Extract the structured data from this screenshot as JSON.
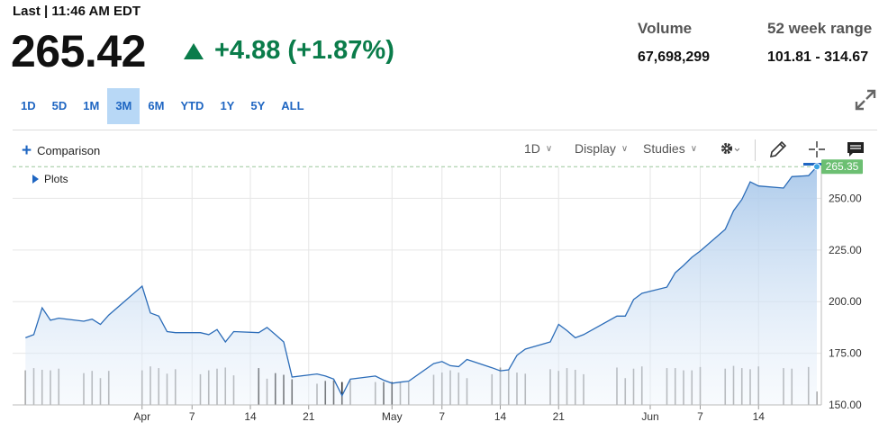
{
  "quote": {
    "last_label": "Last | 11:46 AM EDT",
    "price": "265.42",
    "change": "+4.88",
    "change_pct": "(+1.87%)",
    "up_color": "#0a7c4a"
  },
  "stats": {
    "volume_label": "Volume",
    "volume_value": "67,698,299",
    "range_label": "52 week range",
    "range_value": "101.81 - 314.67"
  },
  "ranges": {
    "items": [
      "1D",
      "5D",
      "1M",
      "3M",
      "6M",
      "YTD",
      "1Y",
      "5Y",
      "ALL"
    ],
    "active": "3M"
  },
  "toolbar": {
    "comparison_label": "Comparison",
    "interval_label": "1D",
    "display_label": "Display",
    "studies_label": "Studies",
    "plots_label": "Plots",
    "icons": [
      "gear-icon",
      "pencil-icon",
      "crosshair-icon",
      "comment-icon",
      "expand-icon"
    ]
  },
  "chart_data": {
    "type": "area",
    "title": "",
    "xlabel": "",
    "ylabel": "",
    "ylim": [
      150,
      265
    ],
    "y_ticks": [
      150,
      175,
      200,
      225,
      250
    ],
    "y_tick_labels": [
      "150.00",
      "175.00",
      "200.00",
      "225.00",
      "250.00"
    ],
    "last_price_label": "265.35",
    "last_price": 265.35,
    "x_labels": [
      {
        "label": "Apr",
        "date": "2024-04-01"
      },
      {
        "label": "7",
        "date": "2024-04-07"
      },
      {
        "label": "14",
        "date": "2024-04-14"
      },
      {
        "label": "21",
        "date": "2024-04-21"
      },
      {
        "label": "May",
        "date": "2024-05-01"
      },
      {
        "label": "7",
        "date": "2024-05-07"
      },
      {
        "label": "14",
        "date": "2024-05-14"
      },
      {
        "label": "21",
        "date": "2024-05-21"
      },
      {
        "label": "Jun",
        "date": "2024-06-01"
      },
      {
        "label": "7",
        "date": "2024-06-07"
      },
      {
        "label": "14",
        "date": "2024-06-14"
      }
    ],
    "series": [
      {
        "x": [
          "2024-03-18",
          "2024-03-19",
          "2024-03-20",
          "2024-03-21",
          "2024-03-22",
          "2024-03-25",
          "2024-03-26",
          "2024-03-27",
          "2024-03-28",
          "2024-04-01",
          "2024-04-02",
          "2024-04-03",
          "2024-04-04",
          "2024-04-05",
          "2024-04-08",
          "2024-04-09",
          "2024-04-10",
          "2024-04-11",
          "2024-04-12",
          "2024-04-15",
          "2024-04-16",
          "2024-04-17",
          "2024-04-18",
          "2024-04-19",
          "2024-04-22",
          "2024-04-23",
          "2024-04-24",
          "2024-04-25",
          "2024-04-26",
          "2024-04-29",
          "2024-04-30",
          "2024-05-01",
          "2024-05-02",
          "2024-05-03",
          "2024-05-06",
          "2024-05-07",
          "2024-05-08",
          "2024-05-09",
          "2024-05-10",
          "2024-05-13",
          "2024-05-14",
          "2024-05-15",
          "2024-05-16",
          "2024-05-17",
          "2024-05-20",
          "2024-05-21",
          "2024-05-22",
          "2024-05-23",
          "2024-05-24",
          "2024-05-28",
          "2024-05-29",
          "2024-05-30",
          "2024-05-31",
          "2024-06-03",
          "2024-06-04",
          "2024-06-05",
          "2024-06-06",
          "2024-06-07",
          "2024-06-10",
          "2024-06-11",
          "2024-06-12",
          "2024-06-13",
          "2024-06-14",
          "2024-06-17",
          "2024-06-18",
          "2024-06-20",
          "2024-06-21"
        ],
        "values": [
          182.5,
          184.0,
          197.0,
          191.0,
          192.0,
          190.5,
          191.5,
          189.0,
          193.5,
          207.5,
          194.5,
          193.0,
          185.5,
          185.0,
          185.0,
          184.0,
          186.5,
          180.5,
          185.5,
          185.0,
          187.5,
          184.0,
          180.5,
          163.5,
          165.0,
          164.0,
          162.5,
          154.5,
          162.5,
          164.0,
          162.0,
          160.5,
          161.0,
          161.5,
          170.0,
          171.0,
          169.0,
          168.5,
          172.0,
          168.0,
          166.5,
          167.0,
          174.0,
          177.0,
          180.5,
          189.0,
          186.0,
          182.5,
          184.0,
          193.0,
          193.0,
          201.0,
          204.0,
          207.0,
          214.0,
          217.5,
          221.5,
          224.5,
          235.0,
          244.0,
          249.5,
          258.0,
          256.0,
          255.0,
          260.5,
          261.0,
          265.35
        ],
        "volume": [
          0.62,
          0.66,
          0.63,
          0.62,
          0.65,
          0.57,
          0.61,
          0.48,
          0.61,
          0.62,
          0.69,
          0.66,
          0.56,
          0.64,
          0.55,
          0.62,
          0.65,
          0.67,
          0.53,
          0.66,
          0.47,
          0.57,
          0.54,
          0.46,
          0.38,
          0.43,
          0.44,
          0.41,
          0.44,
          0.41,
          0.41,
          0.41,
          0.41,
          0.41,
          0.54,
          0.58,
          0.62,
          0.58,
          0.48,
          0.55,
          0.67,
          0.62,
          0.58,
          0.56,
          0.64,
          0.61,
          0.66,
          0.63,
          0.55,
          0.67,
          0.48,
          0.65,
          0.69,
          0.66,
          0.66,
          0.62,
          0.62,
          0.68,
          0.65,
          0.7,
          0.66,
          0.64,
          0.69,
          0.66,
          0.65,
          0.68,
          0.24
        ]
      }
    ],
    "grid": true,
    "legend": "none"
  }
}
